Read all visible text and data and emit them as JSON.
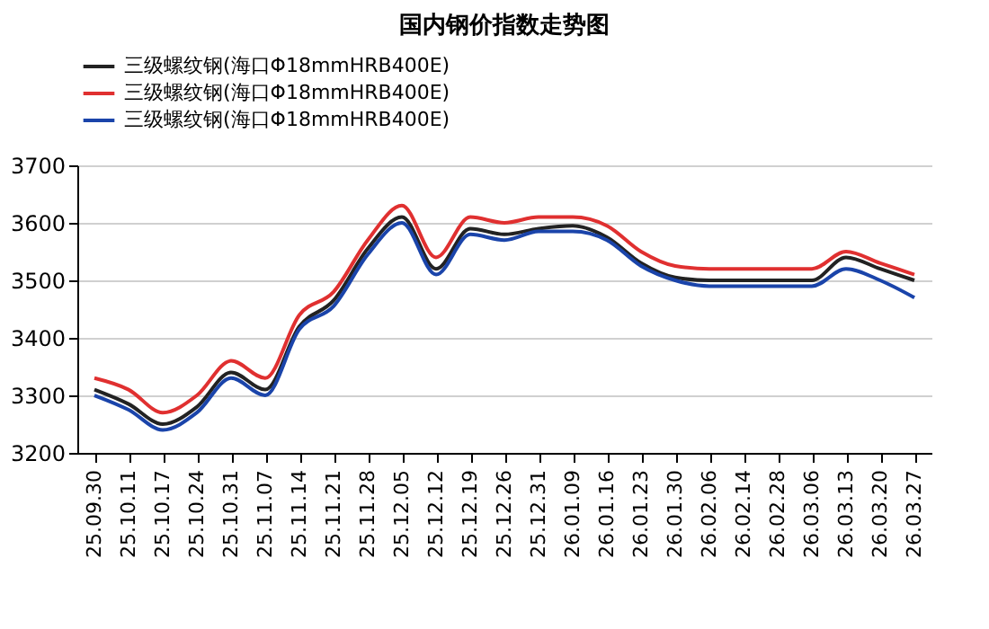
{
  "chart_data": {
    "type": "line",
    "title": "国内钢价指数走势图",
    "categories": [
      "25.09.30",
      "25.10.11",
      "25.10.17",
      "25.10.24",
      "25.10.31",
      "25.11.07",
      "25.11.14",
      "25.11.21",
      "25.11.28",
      "25.12.05",
      "25.12.12",
      "25.12.19",
      "25.12.26",
      "25.12.31",
      "26.01.09",
      "26.01.16",
      "26.01.23",
      "26.01.30",
      "26.02.06",
      "26.02.14",
      "26.02.28",
      "26.03.06",
      "26.03.13",
      "26.03.20",
      "26.03.27"
    ],
    "series": [
      {
        "name": "三级螺纹钢(海口Φ18mmHRB400E)",
        "color": "#222222",
        "values": [
          3310,
          3285,
          3250,
          3280,
          3340,
          3310,
          3420,
          3465,
          3555,
          3610,
          3520,
          3590,
          3580,
          3590,
          3595,
          3575,
          3530,
          3505,
          3500,
          3500,
          3500,
          3500,
          3540,
          3520,
          3500
        ]
      },
      {
        "name": "三级螺纹钢(海口Φ18mmHRB400E)",
        "color": "#e03030",
        "values": [
          3330,
          3310,
          3270,
          3300,
          3360,
          3330,
          3440,
          3480,
          3570,
          3630,
          3540,
          3610,
          3600,
          3610,
          3610,
          3595,
          3550,
          3525,
          3520,
          3520,
          3520,
          3520,
          3550,
          3530,
          3510
        ]
      },
      {
        "name": "三级螺纹钢(海口Φ18mmHRB400E)",
        "color": "#1a44aa",
        "values": [
          3300,
          3275,
          3240,
          3270,
          3330,
          3300,
          3415,
          3455,
          3545,
          3600,
          3510,
          3580,
          3570,
          3585,
          3585,
          3570,
          3525,
          3500,
          3490,
          3490,
          3490,
          3490,
          3520,
          3500,
          3470
        ]
      }
    ],
    "ylim": [
      3200,
      3700
    ],
    "yticks": [
      3200,
      3300,
      3400,
      3500,
      3600,
      3700
    ],
    "grid": "y",
    "legend": "top",
    "marker": "none",
    "line_style": "solid"
  }
}
